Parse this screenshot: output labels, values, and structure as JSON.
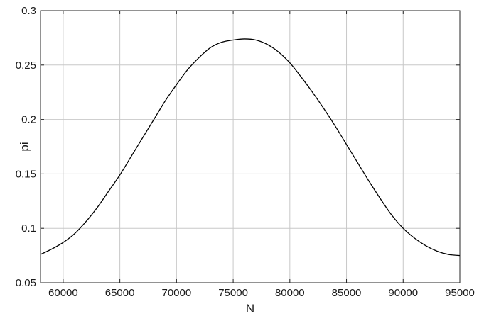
{
  "chart_data": {
    "type": "line",
    "title": "",
    "xlabel": "N",
    "ylabel": "pi",
    "xlim": [
      58000,
      95000
    ],
    "ylim": [
      0.05,
      0.3
    ],
    "grid": true,
    "x_ticks": [
      60000,
      65000,
      70000,
      75000,
      80000,
      85000,
      90000,
      95000
    ],
    "x_tick_labels": [
      "60000",
      "65000",
      "70000",
      "75000",
      "80000",
      "85000",
      "90000",
      "95000"
    ],
    "y_ticks": [
      0.05,
      0.1,
      0.15,
      0.2,
      0.25,
      0.3
    ],
    "y_tick_labels": [
      "0.05",
      "0.1",
      "0.15",
      "0.2",
      "0.25",
      "0.3"
    ],
    "series": [
      {
        "color": "#000000",
        "x": [
          58000,
          59000,
          60000,
          61000,
          62000,
          63000,
          64000,
          65000,
          66000,
          67000,
          68000,
          69000,
          70000,
          71000,
          72000,
          73000,
          74000,
          75000,
          76000,
          77000,
          78000,
          79000,
          80000,
          81000,
          82000,
          83000,
          84000,
          85000,
          86000,
          87000,
          88000,
          89000,
          90000,
          91000,
          92000,
          93000,
          94000,
          95000
        ],
        "y": [
          0.076,
          0.081,
          0.087,
          0.095,
          0.106,
          0.119,
          0.134,
          0.149,
          0.166,
          0.183,
          0.2,
          0.217,
          0.232,
          0.246,
          0.257,
          0.266,
          0.271,
          0.273,
          0.274,
          0.273,
          0.269,
          0.262,
          0.252,
          0.239,
          0.225,
          0.21,
          0.194,
          0.177,
          0.16,
          0.143,
          0.127,
          0.112,
          0.1,
          0.091,
          0.084,
          0.079,
          0.076,
          0.075
        ]
      }
    ]
  }
}
